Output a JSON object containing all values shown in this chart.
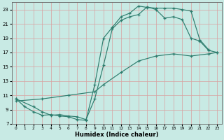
{
  "xlabel": "Humidex (Indice chaleur)",
  "xlim": [
    -0.5,
    23.5
  ],
  "ylim": [
    7,
    24
  ],
  "yticks": [
    7,
    9,
    11,
    13,
    15,
    17,
    19,
    21,
    23
  ],
  "xticks": [
    0,
    1,
    2,
    3,
    4,
    5,
    6,
    7,
    8,
    9,
    10,
    11,
    12,
    13,
    14,
    15,
    16,
    17,
    18,
    19,
    20,
    21,
    22,
    23
  ],
  "bg_color": "#c8eae4",
  "grid_color": "#d9a0a0",
  "line_color": "#2e7d6e",
  "line1_x": [
    0,
    1,
    2,
    3,
    4,
    5,
    6,
    7,
    8,
    9,
    10,
    11,
    12,
    13,
    14,
    15,
    16,
    17,
    18,
    19,
    20,
    21,
    22
  ],
  "line1_y": [
    10.5,
    9.4,
    8.7,
    8.2,
    8.3,
    8.1,
    8.0,
    7.6,
    7.5,
    12.5,
    19.0,
    20.5,
    22.0,
    22.5,
    23.5,
    23.3,
    23.2,
    23.2,
    23.2,
    23.0,
    22.8,
    18.8,
    17.4
  ],
  "line2_x": [
    0,
    2,
    3,
    4,
    5,
    6,
    7,
    8,
    9,
    10,
    11,
    12,
    13,
    14,
    15,
    16,
    17,
    18,
    19,
    20,
    21,
    22,
    23
  ],
  "line2_y": [
    10.5,
    9.4,
    8.7,
    8.2,
    8.3,
    8.1,
    8.0,
    7.6,
    10.5,
    15.2,
    20.3,
    21.5,
    22.0,
    22.3,
    23.4,
    23.0,
    21.8,
    22.0,
    21.6,
    19.0,
    18.6,
    17.3,
    17.0
  ],
  "line3_x": [
    0,
    3,
    6,
    9,
    10,
    12,
    14,
    16,
    18,
    20,
    22,
    23
  ],
  "line3_y": [
    10.2,
    10.5,
    11.0,
    11.5,
    12.5,
    14.2,
    15.8,
    16.5,
    16.8,
    16.5,
    16.8,
    17.0
  ]
}
